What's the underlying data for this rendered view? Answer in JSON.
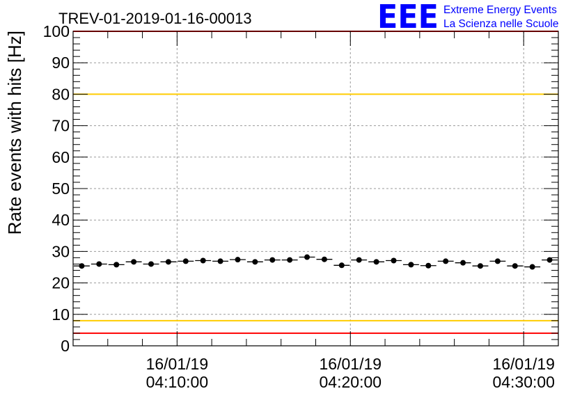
{
  "chart_data": {
    "type": "scatter",
    "title": "TREV-01-2019-01-16-00013",
    "xlabel": "",
    "ylabel": "Rate events with hits [Hz]",
    "ylim": [
      0,
      100
    ],
    "yticks": [
      "0",
      "10",
      "20",
      "30",
      "40",
      "50",
      "60",
      "70",
      "80",
      "90",
      "100"
    ],
    "xlim_minutes": [
      4.0,
      32.0
    ],
    "xticks": [
      {
        "minute": 10,
        "date": "16/01/19",
        "time": "04:10:00"
      },
      {
        "minute": 20,
        "date": "16/01/19",
        "time": "04:20:00"
      },
      {
        "minute": 30,
        "date": "16/01/19",
        "time": "04:30:00"
      }
    ],
    "grid": true,
    "series": [
      {
        "name": "rate",
        "color": "#000000",
        "x_minutes": [
          4.5,
          5.5,
          6.5,
          7.5,
          8.5,
          9.5,
          10.5,
          11.5,
          12.5,
          13.5,
          14.5,
          15.5,
          16.5,
          17.5,
          18.5,
          19.5,
          20.5,
          21.5,
          22.5,
          23.5,
          24.5,
          25.5,
          26.5,
          27.5,
          28.5,
          29.5,
          30.5,
          31.5
        ],
        "x_halfwidth": 0.5,
        "values": [
          25.4,
          26.0,
          25.8,
          26.7,
          26.0,
          26.7,
          26.9,
          27.1,
          26.9,
          27.4,
          26.7,
          27.3,
          27.3,
          28.2,
          27.5,
          25.6,
          27.3,
          26.7,
          27.1,
          25.8,
          25.5,
          26.9,
          26.4,
          25.4,
          26.9,
          25.4,
          25.1,
          27.3
        ]
      }
    ],
    "reference_lines": [
      {
        "value": 100,
        "color": "#ff0000"
      },
      {
        "value": 80,
        "color": "#ffcc00"
      },
      {
        "value": 8,
        "color": "#ffcc00"
      },
      {
        "value": 4,
        "color": "#ff0000"
      }
    ]
  },
  "logo": {
    "letters": "EEE",
    "line1": "Extreme Energy Events",
    "line2": "La Scienza nelle Scuole",
    "color": "#0000ff"
  }
}
